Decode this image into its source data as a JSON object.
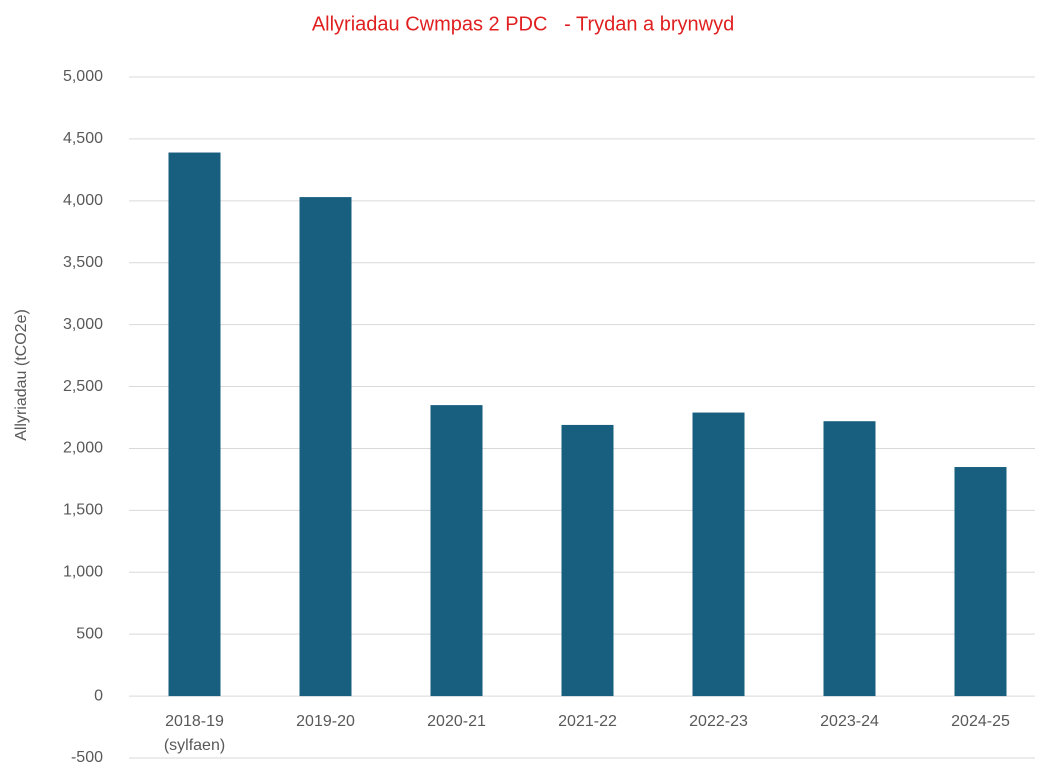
{
  "chart_data": {
    "type": "bar",
    "title": "Allyriadau Cwmpas 2 PDC   - Trydan a brynwyd",
    "y_label": "Allyriadau (tCO2e)",
    "categories": [
      "2018-19\n(sylfaen)",
      "2019-20",
      "2020-21",
      "2021-22",
      "2022-23",
      "2023-24",
      "2024-25"
    ],
    "values": [
      4390,
      4030,
      2350,
      2190,
      2290,
      2220,
      1850
    ],
    "color": "#175e7f",
    "ylim": [
      -500,
      5000
    ],
    "yticks": [
      -500,
      0,
      500,
      {
        "value": 1000,
        "label": "1,000"
      },
      {
        "value": 1500,
        "label": "1,500"
      },
      {
        "value": 2000,
        "label": "2,000"
      },
      {
        "value": 2500,
        "label": "2,500"
      },
      {
        "value": 3000,
        "label": "3,000"
      },
      {
        "value": 3500,
        "label": "3,500"
      },
      {
        "value": 4000,
        "label": "4,000"
      },
      {
        "value": 4500,
        "label": "4,500"
      },
      {
        "value": 5000,
        "label": "5,000"
      }
    ],
    "grid": true
  }
}
